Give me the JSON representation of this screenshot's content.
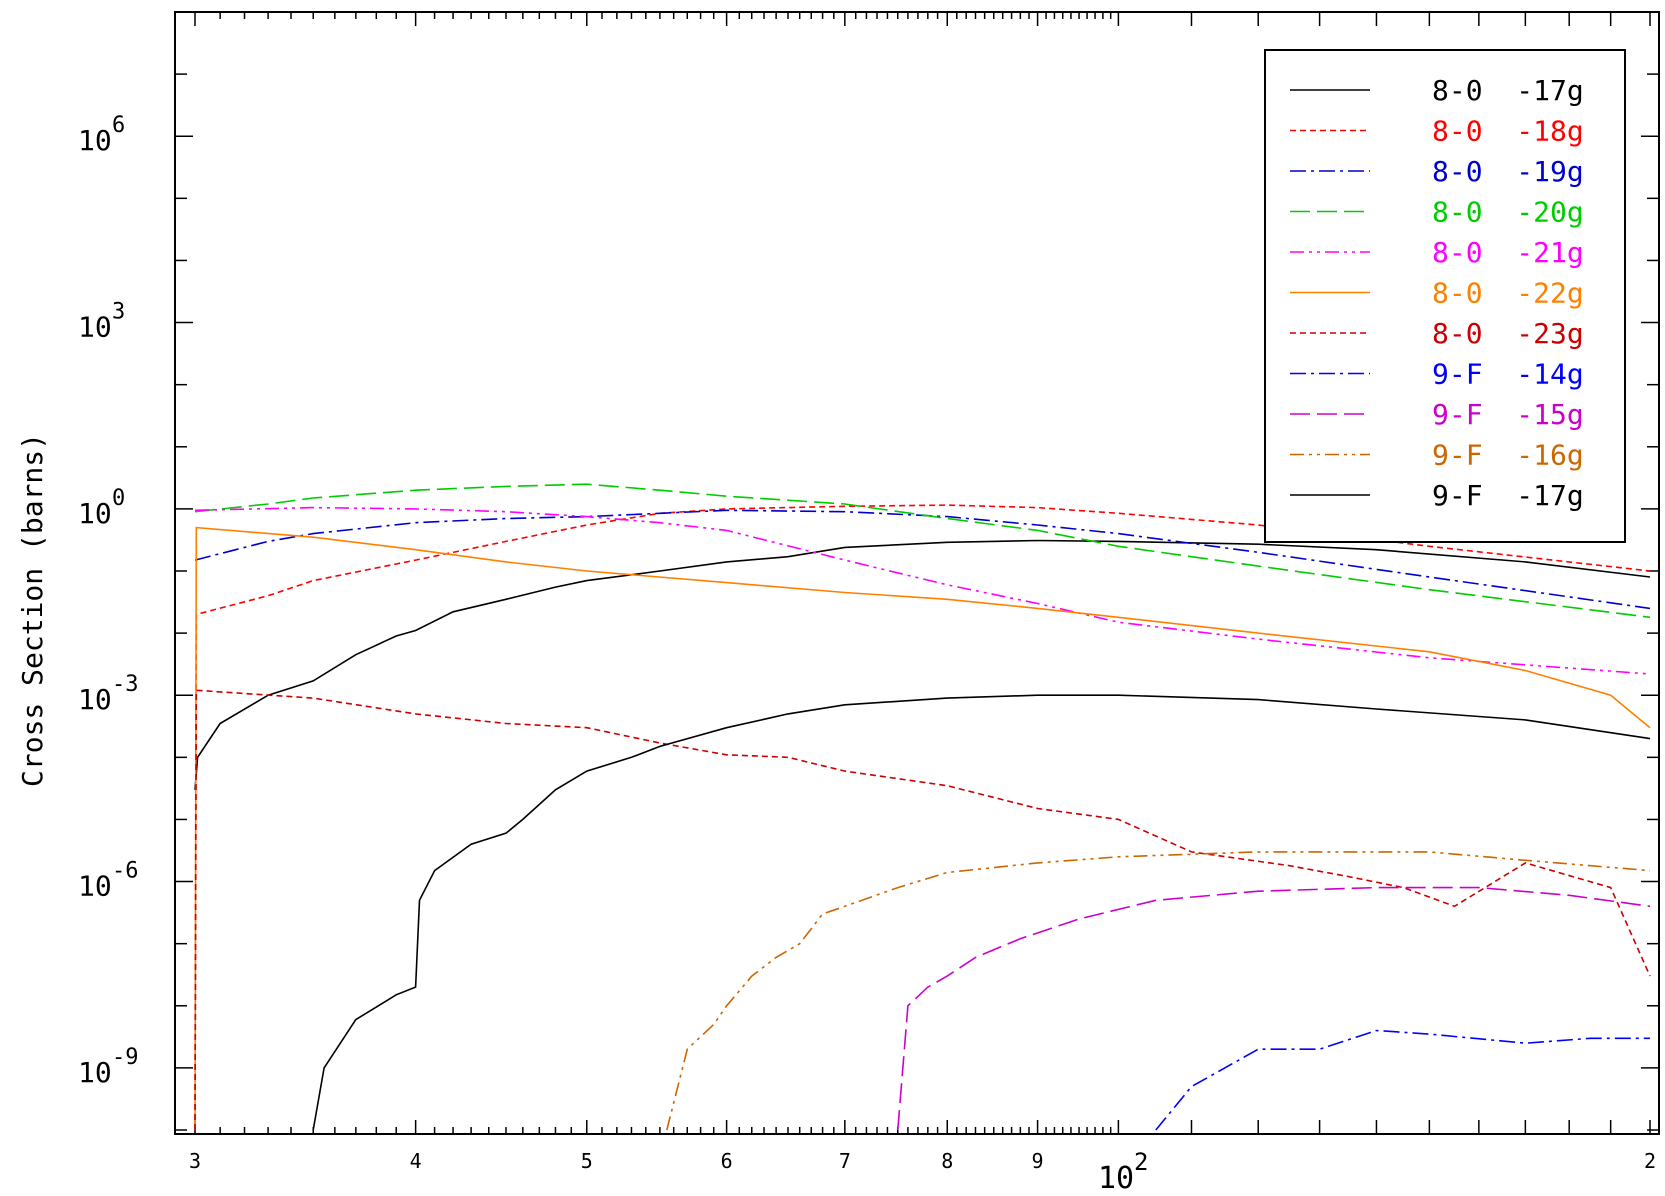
{
  "chart_data": {
    "type": "line",
    "xscale": "log",
    "yscale": "log",
    "xlim": [
      30,
      200
    ],
    "ylim": [
      1e-10,
      100000000.0
    ],
    "ylabel": "Cross Section (barns)",
    "xlabel": "",
    "x_power_label": {
      "base": "10",
      "exp": "2"
    },
    "x_ticks": [
      {
        "value": 30,
        "label": "3"
      },
      {
        "value": 40,
        "label": "4"
      },
      {
        "value": 50,
        "label": "5"
      },
      {
        "value": 60,
        "label": "6"
      },
      {
        "value": 70,
        "label": "7"
      },
      {
        "value": 80,
        "label": "8"
      },
      {
        "value": 90,
        "label": "9"
      },
      {
        "value": 200,
        "label": "2"
      }
    ],
    "y_ticks": [
      {
        "value": 1e-09,
        "base": "10",
        "exp": "-9"
      },
      {
        "value": 1e-06,
        "base": "10",
        "exp": "-6"
      },
      {
        "value": 0.001,
        "base": "10",
        "exp": "-3"
      },
      {
        "value": 1,
        "base": "10",
        "exp": "0"
      },
      {
        "value": 1000.0,
        "base": "10",
        "exp": "3"
      },
      {
        "value": 1000000.0,
        "base": "10",
        "exp": "6"
      }
    ],
    "grid": false,
    "legend_position": "top-right",
    "series": [
      {
        "name": "8-0  -17g",
        "color": "#000000",
        "dash": "solid",
        "points": [
          [
            30,
            3e-05
          ],
          [
            30.1,
            0.0001
          ],
          [
            31,
            0.00035
          ],
          [
            33,
            0.001
          ],
          [
            35,
            0.0017
          ],
          [
            37,
            0.0045
          ],
          [
            39,
            0.009
          ],
          [
            40,
            0.011
          ],
          [
            42,
            0.022
          ],
          [
            45,
            0.035
          ],
          [
            48,
            0.055
          ],
          [
            50,
            0.07
          ],
          [
            55,
            0.1
          ],
          [
            60,
            0.14
          ],
          [
            65,
            0.17
          ],
          [
            70,
            0.24
          ],
          [
            80,
            0.29
          ],
          [
            90,
            0.31
          ],
          [
            100,
            0.3
          ],
          [
            120,
            0.27
          ],
          [
            140,
            0.22
          ],
          [
            170,
            0.14
          ],
          [
            200,
            0.08
          ]
        ]
      },
      {
        "name": "8-0  -18g",
        "color": "#ff0000",
        "dash": "short",
        "points": [
          [
            30,
            1e-10
          ],
          [
            30.05,
            0.02
          ],
          [
            33,
            0.04
          ],
          [
            35,
            0.07
          ],
          [
            40,
            0.15
          ],
          [
            45,
            0.3
          ],
          [
            50,
            0.55
          ],
          [
            55,
            0.85
          ],
          [
            60,
            1.0
          ],
          [
            70,
            1.1
          ],
          [
            80,
            1.15
          ],
          [
            90,
            1.05
          ],
          [
            100,
            0.85
          ],
          [
            120,
            0.55
          ],
          [
            150,
            0.25
          ],
          [
            200,
            0.1
          ]
        ]
      },
      {
        "name": "8-0  -19g",
        "color": "#0000cc",
        "dash": "dashdot",
        "points": [
          [
            30,
            0.15
          ],
          [
            33,
            0.3
          ],
          [
            35,
            0.4
          ],
          [
            40,
            0.6
          ],
          [
            45,
            0.7
          ],
          [
            50,
            0.75
          ],
          [
            55,
            0.85
          ],
          [
            60,
            0.95
          ],
          [
            70,
            0.9
          ],
          [
            80,
            0.75
          ],
          [
            90,
            0.55
          ],
          [
            100,
            0.4
          ],
          [
            120,
            0.2
          ],
          [
            150,
            0.08
          ],
          [
            200,
            0.025
          ]
        ]
      },
      {
        "name": "8-0  -20g",
        "color": "#00cc00",
        "dash": "long",
        "points": [
          [
            30,
            0.9
          ],
          [
            33,
            1.2
          ],
          [
            35,
            1.5
          ],
          [
            40,
            2.0
          ],
          [
            45,
            2.3
          ],
          [
            50,
            2.5
          ],
          [
            55,
            2.0
          ],
          [
            60,
            1.6
          ],
          [
            70,
            1.2
          ],
          [
            80,
            0.7
          ],
          [
            90,
            0.45
          ],
          [
            100,
            0.25
          ],
          [
            120,
            0.12
          ],
          [
            150,
            0.05
          ],
          [
            200,
            0.018
          ]
        ]
      },
      {
        "name": "8-0  -21g",
        "color": "#ff00ff",
        "dash": "dashdotdot",
        "points": [
          [
            30,
            0.95
          ],
          [
            35,
            1.05
          ],
          [
            40,
            1.0
          ],
          [
            45,
            0.9
          ],
          [
            50,
            0.75
          ],
          [
            55,
            0.6
          ],
          [
            60,
            0.45
          ],
          [
            70,
            0.15
          ],
          [
            80,
            0.06
          ],
          [
            90,
            0.03
          ],
          [
            100,
            0.015
          ],
          [
            120,
            0.008
          ],
          [
            150,
            0.004
          ],
          [
            200,
            0.0022
          ]
        ]
      },
      {
        "name": "8-0  -22g",
        "color": "#ff8000",
        "dash": "solid",
        "points": [
          [
            30,
            1e-10
          ],
          [
            30.05,
            0.5
          ],
          [
            35,
            0.35
          ],
          [
            40,
            0.22
          ],
          [
            45,
            0.14
          ],
          [
            50,
            0.1
          ],
          [
            60,
            0.065
          ],
          [
            70,
            0.045
          ],
          [
            80,
            0.035
          ],
          [
            90,
            0.025
          ],
          [
            100,
            0.018
          ],
          [
            120,
            0.01
          ],
          [
            150,
            0.005
          ],
          [
            170,
            0.0025
          ],
          [
            190,
            0.001
          ],
          [
            200,
            0.0003
          ]
        ]
      },
      {
        "name": "8-0  -23g",
        "color": "#cc0000",
        "dash": "short",
        "points": [
          [
            30,
            1e-10
          ],
          [
            30.05,
            0.0012
          ],
          [
            35,
            0.0009
          ],
          [
            40,
            0.0005
          ],
          [
            45,
            0.00035
          ],
          [
            50,
            0.0003
          ],
          [
            55,
            0.00017
          ],
          [
            60,
            0.00011
          ],
          [
            65,
            0.0001
          ],
          [
            70,
            6e-05
          ],
          [
            80,
            3.5e-05
          ],
          [
            90,
            1.5e-05
          ],
          [
            100,
            1e-05
          ],
          [
            110,
            3e-06
          ],
          [
            125,
            1.8e-06
          ],
          [
            135,
            1.2e-06
          ],
          [
            145,
            8e-07
          ],
          [
            155,
            4e-07
          ],
          [
            170,
            2e-06
          ],
          [
            190,
            8e-07
          ],
          [
            200,
            3e-08
          ]
        ]
      },
      {
        "name": "9-F  -14g",
        "color": "#0000ff",
        "dash": "dashdot",
        "points": [
          [
            105,
            1e-10
          ],
          [
            110,
            5e-10
          ],
          [
            120,
            2e-09
          ],
          [
            130,
            2e-09
          ],
          [
            140,
            4e-09
          ],
          [
            150,
            3.5e-09
          ],
          [
            170,
            2.5e-09
          ],
          [
            185,
            3e-09
          ],
          [
            200,
            3e-09
          ]
        ]
      },
      {
        "name": "9-F  -15g",
        "color": "#cc00cc",
        "dash": "long",
        "points": [
          [
            75,
            1e-10
          ],
          [
            76,
            1e-08
          ],
          [
            78,
            2e-08
          ],
          [
            80,
            3e-08
          ],
          [
            83,
            6e-08
          ],
          [
            88,
            1.2e-07
          ],
          [
            95,
            2.5e-07
          ],
          [
            105,
            5e-07
          ],
          [
            120,
            7e-07
          ],
          [
            140,
            8e-07
          ],
          [
            160,
            8e-07
          ],
          [
            180,
            6e-07
          ],
          [
            200,
            4e-07
          ]
        ]
      },
      {
        "name": "9-F  -16g",
        "color": "#cc6600",
        "dash": "dashdotdot",
        "points": [
          [
            55.5,
            1e-10
          ],
          [
            57,
            2e-09
          ],
          [
            59,
            5e-09
          ],
          [
            60,
            1e-08
          ],
          [
            62,
            3e-08
          ],
          [
            64,
            6e-08
          ],
          [
            66,
            1e-07
          ],
          [
            68,
            3e-07
          ],
          [
            70,
            4e-07
          ],
          [
            75,
            8e-07
          ],
          [
            80,
            1.4e-06
          ],
          [
            90,
            2e-06
          ],
          [
            100,
            2.5e-06
          ],
          [
            120,
            3e-06
          ],
          [
            150,
            3e-06
          ],
          [
            170,
            2.2e-06
          ],
          [
            200,
            1.5e-06
          ]
        ]
      },
      {
        "name": "9-F  -17g",
        "color": "#000000",
        "dash": "solid",
        "points": [
          [
            35,
            1e-10
          ],
          [
            35.5,
            1e-09
          ],
          [
            37,
            6e-09
          ],
          [
            39,
            1.5e-08
          ],
          [
            40,
            2e-08
          ],
          [
            40.2,
            5e-07
          ],
          [
            41,
            1.5e-06
          ],
          [
            43,
            4e-06
          ],
          [
            45,
            6e-06
          ],
          [
            46,
            1e-05
          ],
          [
            48,
            3e-05
          ],
          [
            50,
            6e-05
          ],
          [
            53,
            0.0001
          ],
          [
            55,
            0.00015
          ],
          [
            60,
            0.0003
          ],
          [
            65,
            0.0005
          ],
          [
            70,
            0.0007
          ],
          [
            80,
            0.0009
          ],
          [
            90,
            0.001
          ],
          [
            100,
            0.001
          ],
          [
            120,
            0.00085
          ],
          [
            140,
            0.0006
          ],
          [
            170,
            0.0004
          ],
          [
            200,
            0.0002
          ]
        ]
      }
    ]
  }
}
